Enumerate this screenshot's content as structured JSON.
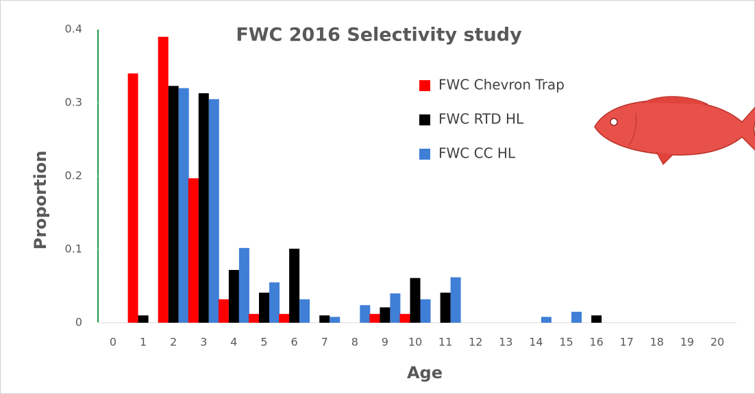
{
  "chart_data": {
    "type": "bar",
    "title": "FWC 2016 Selectivity study",
    "x_label": "Age",
    "y_label": "Proportion",
    "categories": [
      0,
      1,
      2,
      3,
      4,
      5,
      6,
      7,
      8,
      9,
      10,
      11,
      12,
      13,
      14,
      15,
      16,
      17,
      18,
      19,
      20
    ],
    "series": [
      {
        "name": "FWC Chevron Trap",
        "color": "#ff0000",
        "values": [
          0,
          0.34,
          0.39,
          0.197,
          0.032,
          0.012,
          0.012,
          0,
          0,
          0.012,
          0.012,
          0,
          0,
          0,
          0,
          0,
          0,
          0,
          0,
          0,
          0
        ]
      },
      {
        "name": "FWC RTD HL",
        "color": "#000000",
        "values": [
          0,
          0.01,
          0.323,
          0.313,
          0.072,
          0.041,
          0.101,
          0.01,
          0,
          0.021,
          0.061,
          0.041,
          0,
          0,
          0,
          0,
          0.01,
          0,
          0,
          0,
          0
        ]
      },
      {
        "name": "FWC CC HL",
        "color": "#3f7fd6",
        "values": [
          0,
          0,
          0.32,
          0.305,
          0.102,
          0.055,
          0.032,
          0.008,
          0.024,
          0.04,
          0.032,
          0.062,
          0,
          0,
          0.008,
          0.015,
          0,
          0,
          0,
          0,
          0
        ]
      }
    ],
    "ylim": [
      0,
      0.4
    ],
    "yticks": [
      0,
      0.1,
      0.2,
      0.3,
      0.4
    ]
  }
}
